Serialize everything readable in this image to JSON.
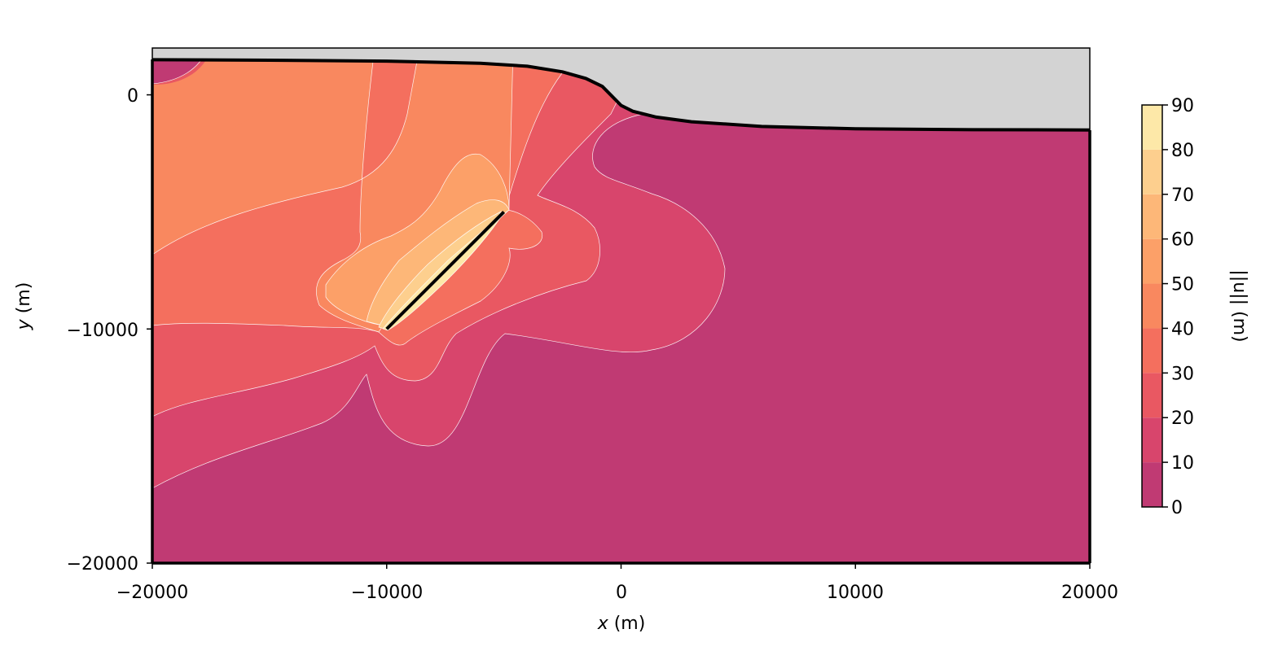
{
  "chart_data": {
    "type": "contour",
    "xlabel": {
      "var": "x",
      "unit": " (m)"
    },
    "ylabel": {
      "var": "y",
      "unit": " (m)"
    },
    "xlim": [
      -20000,
      20000
    ],
    "ylim": [
      -20000,
      2000
    ],
    "xticks": [
      {
        "value": -20000,
        "label": "−20000"
      },
      {
        "value": -10000,
        "label": "−10000"
      },
      {
        "value": 0,
        "label": "0"
      },
      {
        "value": 10000,
        "label": "10000"
      },
      {
        "value": 20000,
        "label": "20000"
      }
    ],
    "yticks": [
      {
        "value": 0,
        "label": "0"
      },
      {
        "value": -10000,
        "label": "−10000"
      },
      {
        "value": -20000,
        "label": "−20000"
      }
    ],
    "fault": {
      "start": [
        -10000,
        -10000
      ],
      "end": [
        -5000,
        -5000
      ]
    },
    "surface": {
      "x": [
        -20000,
        -15000,
        -10000,
        -6000,
        -4000,
        -2500,
        -1500,
        -800,
        0,
        500,
        1500,
        3000,
        6000,
        10000,
        15000,
        20000
      ],
      "y": [
        1500,
        1480,
        1440,
        1350,
        1220,
        980,
        700,
        360,
        -450,
        -700,
        -950,
        -1150,
        -1350,
        -1450,
        -1490,
        -1500
      ]
    },
    "colorbar": {
      "label": "||u|| (m)",
      "levels": [
        0,
        10,
        20,
        30,
        40,
        50,
        60,
        70,
        80,
        90
      ],
      "tick_labels": [
        "0",
        "10",
        "20",
        "30",
        "40",
        "50",
        "60",
        "70",
        "80",
        "90"
      ],
      "colors": [
        "#c03a73",
        "#d8456c",
        "#e95862",
        "#f46f5e",
        "#f9885f",
        "#fca068",
        "#fdb778",
        "#fdcf8e",
        "#fde8a8"
      ]
    },
    "colors": {
      "sky": "#d3d3d3",
      "contour_line": "#ffffff",
      "fault": "#000000",
      "surface": "#000000"
    }
  }
}
